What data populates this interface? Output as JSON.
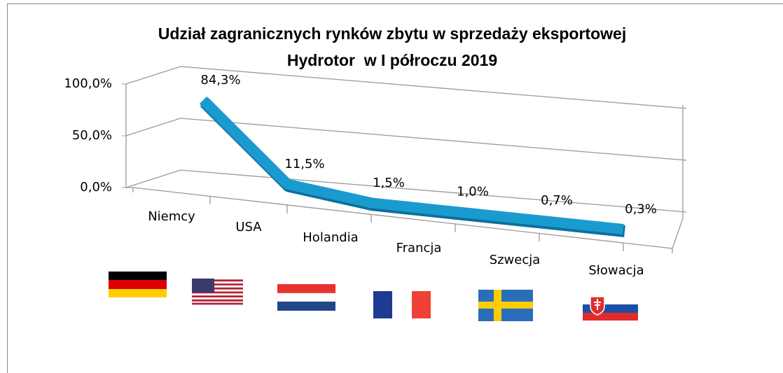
{
  "chart_data": {
    "type": "line",
    "title": [
      "Udział zagranicznych rynków zbytu w sprzedaży eksportowej",
      "Hydrotor  w I półroczu 2019"
    ],
    "categories": [
      "Niemcy",
      "USA",
      "Holandia",
      "Francja",
      "Szwecja",
      "Słowacja"
    ],
    "values": [
      84.3,
      11.5,
      1.5,
      1.0,
      0.7,
      0.3
    ],
    "value_labels": [
      "84,3%",
      "11,5%",
      "1,5%",
      "1,0%",
      "0,7%",
      "0,3%"
    ],
    "color": "#1a9bd0",
    "ylim": [
      0,
      100
    ],
    "yticks": [
      {
        "value": 0,
        "label": "0,0%"
      },
      {
        "value": 50,
        "label": "50,0%"
      },
      {
        "value": 100,
        "label": "100,0%"
      }
    ],
    "grid": true
  }
}
